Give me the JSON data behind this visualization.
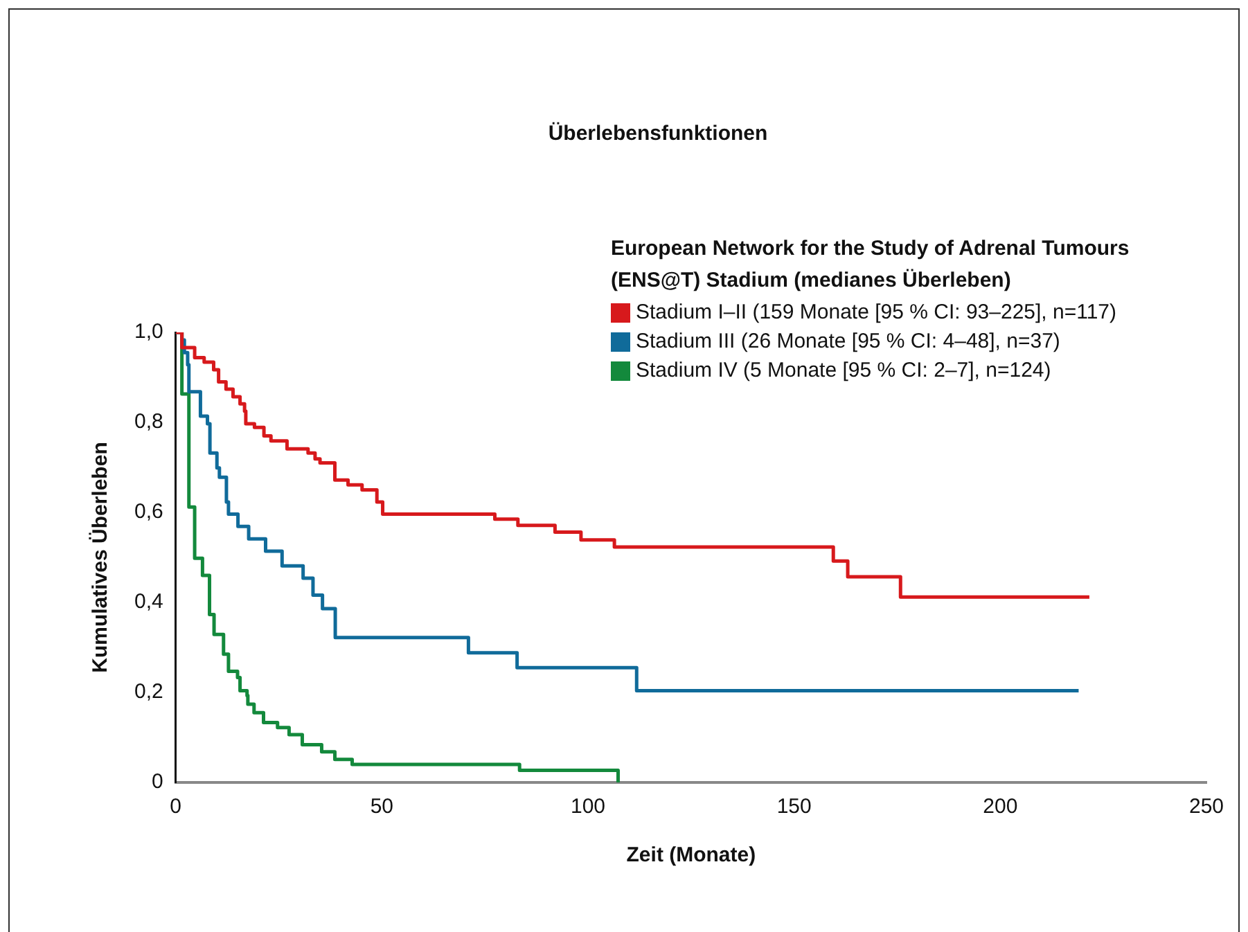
{
  "chart_data": {
    "type": "step",
    "title": "Überlebensfunktionen",
    "xlabel": "Zeit (Monate)",
    "ylabel": "Kumulatives Überleben",
    "legend_title": "European Network for the Study of Adrenal Tumours (ENS@T) Stadium (medianes Überleben)",
    "legend": "top right",
    "grid": false,
    "marker": "none",
    "line_style": "solid",
    "xlim": [
      0,
      250
    ],
    "xticks": [
      0,
      50,
      100,
      150,
      200,
      250
    ],
    "ylim": [
      0,
      1
    ],
    "yticks": [
      {
        "value": 0,
        "label": "0"
      },
      {
        "value": 0.2,
        "label": "0,2"
      },
      {
        "value": 0.4,
        "label": "0,4"
      },
      {
        "value": 0.6,
        "label": "0,6"
      },
      {
        "value": 0.8,
        "label": "0,8"
      },
      {
        "value": 1,
        "label": "1,0"
      }
    ],
    "series": [
      {
        "name": "Stadium I–II (159 Monate [95 % CI: 93–225], n=117)",
        "color": "#d7191c",
        "x": [
          0,
          1.5,
          4.6,
          6.9,
          9.2,
          10.4,
          12.2,
          13.9,
          15.6,
          16.7,
          17,
          19.1,
          21.4,
          23.1,
          27,
          32.1,
          33.8,
          35,
          38.6,
          41.8,
          45.2,
          48.8,
          50.2,
          77.4,
          83,
          92,
          98.3,
          106.4,
          159.5,
          163,
          175.8,
          221.6
        ],
        "values": [
          1,
          0.966,
          0.944,
          0.934,
          0.917,
          0.89,
          0.874,
          0.857,
          0.841,
          0.825,
          0.797,
          0.789,
          0.77,
          0.759,
          0.741,
          0.732,
          0.719,
          0.71,
          0.672,
          0.661,
          0.65,
          0.623,
          0.596,
          0.585,
          0.571,
          0.556,
          0.539,
          0.523,
          0.492,
          0.457,
          0.412,
          0.412
        ]
      },
      {
        "name": "Stadium III (26 Monate [95 % CI: 4–48], n=37)",
        "color": "#106b9a",
        "x": [
          0,
          1.5,
          2.1,
          2.9,
          3.2,
          6,
          7.7,
          8.3,
          10,
          10.6,
          12.3,
          12.8,
          15.1,
          17.7,
          21.8,
          25.8,
          30.9,
          33.3,
          35.6,
          38.7,
          71,
          82.8,
          111.8,
          219
        ],
        "values": [
          1,
          0.983,
          0.955,
          0.928,
          0.868,
          0.814,
          0.797,
          0.732,
          0.699,
          0.678,
          0.623,
          0.596,
          0.569,
          0.541,
          0.514,
          0.481,
          0.454,
          0.416,
          0.386,
          0.322,
          0.288,
          0.255,
          0.204,
          0.204
        ]
      },
      {
        "name": "Stadium IV (5 Monate [95 % CI: 2–7], n=124)",
        "color": "#13893c",
        "x": [
          0,
          1.5,
          3.2,
          4.6,
          6.5,
          8.2,
          9.3,
          11.6,
          12.8,
          15,
          15.6,
          17.3,
          17.5,
          19,
          21.3,
          24.7,
          27.5,
          30.7,
          35.4,
          38.6,
          42.8,
          83.4,
          107.3
        ],
        "values": [
          1,
          0.863,
          0.612,
          0.498,
          0.46,
          0.373,
          0.329,
          0.285,
          0.247,
          0.233,
          0.204,
          0.193,
          0.174,
          0.155,
          0.133,
          0.122,
          0.106,
          0.084,
          0.068,
          0.051,
          0.04,
          0.027,
          0
        ]
      }
    ]
  }
}
